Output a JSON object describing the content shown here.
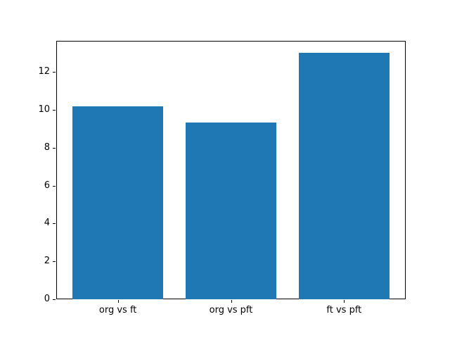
{
  "chart_data": {
    "type": "bar",
    "title": "",
    "xlabel": "",
    "ylabel": "",
    "categories": [
      "org vs ft",
      "org vs pft",
      "ft vs pft"
    ],
    "values": [
      10.2,
      9.33,
      13.0
    ],
    "yticks": [
      0,
      2,
      4,
      6,
      8,
      10,
      12
    ],
    "ylim": [
      0,
      13.65
    ],
    "bar_color": "#1f77b4",
    "axis_color": "#000000",
    "text_color": "#000000",
    "background_color": "#ffffff",
    "grid": false,
    "legend": null
  }
}
